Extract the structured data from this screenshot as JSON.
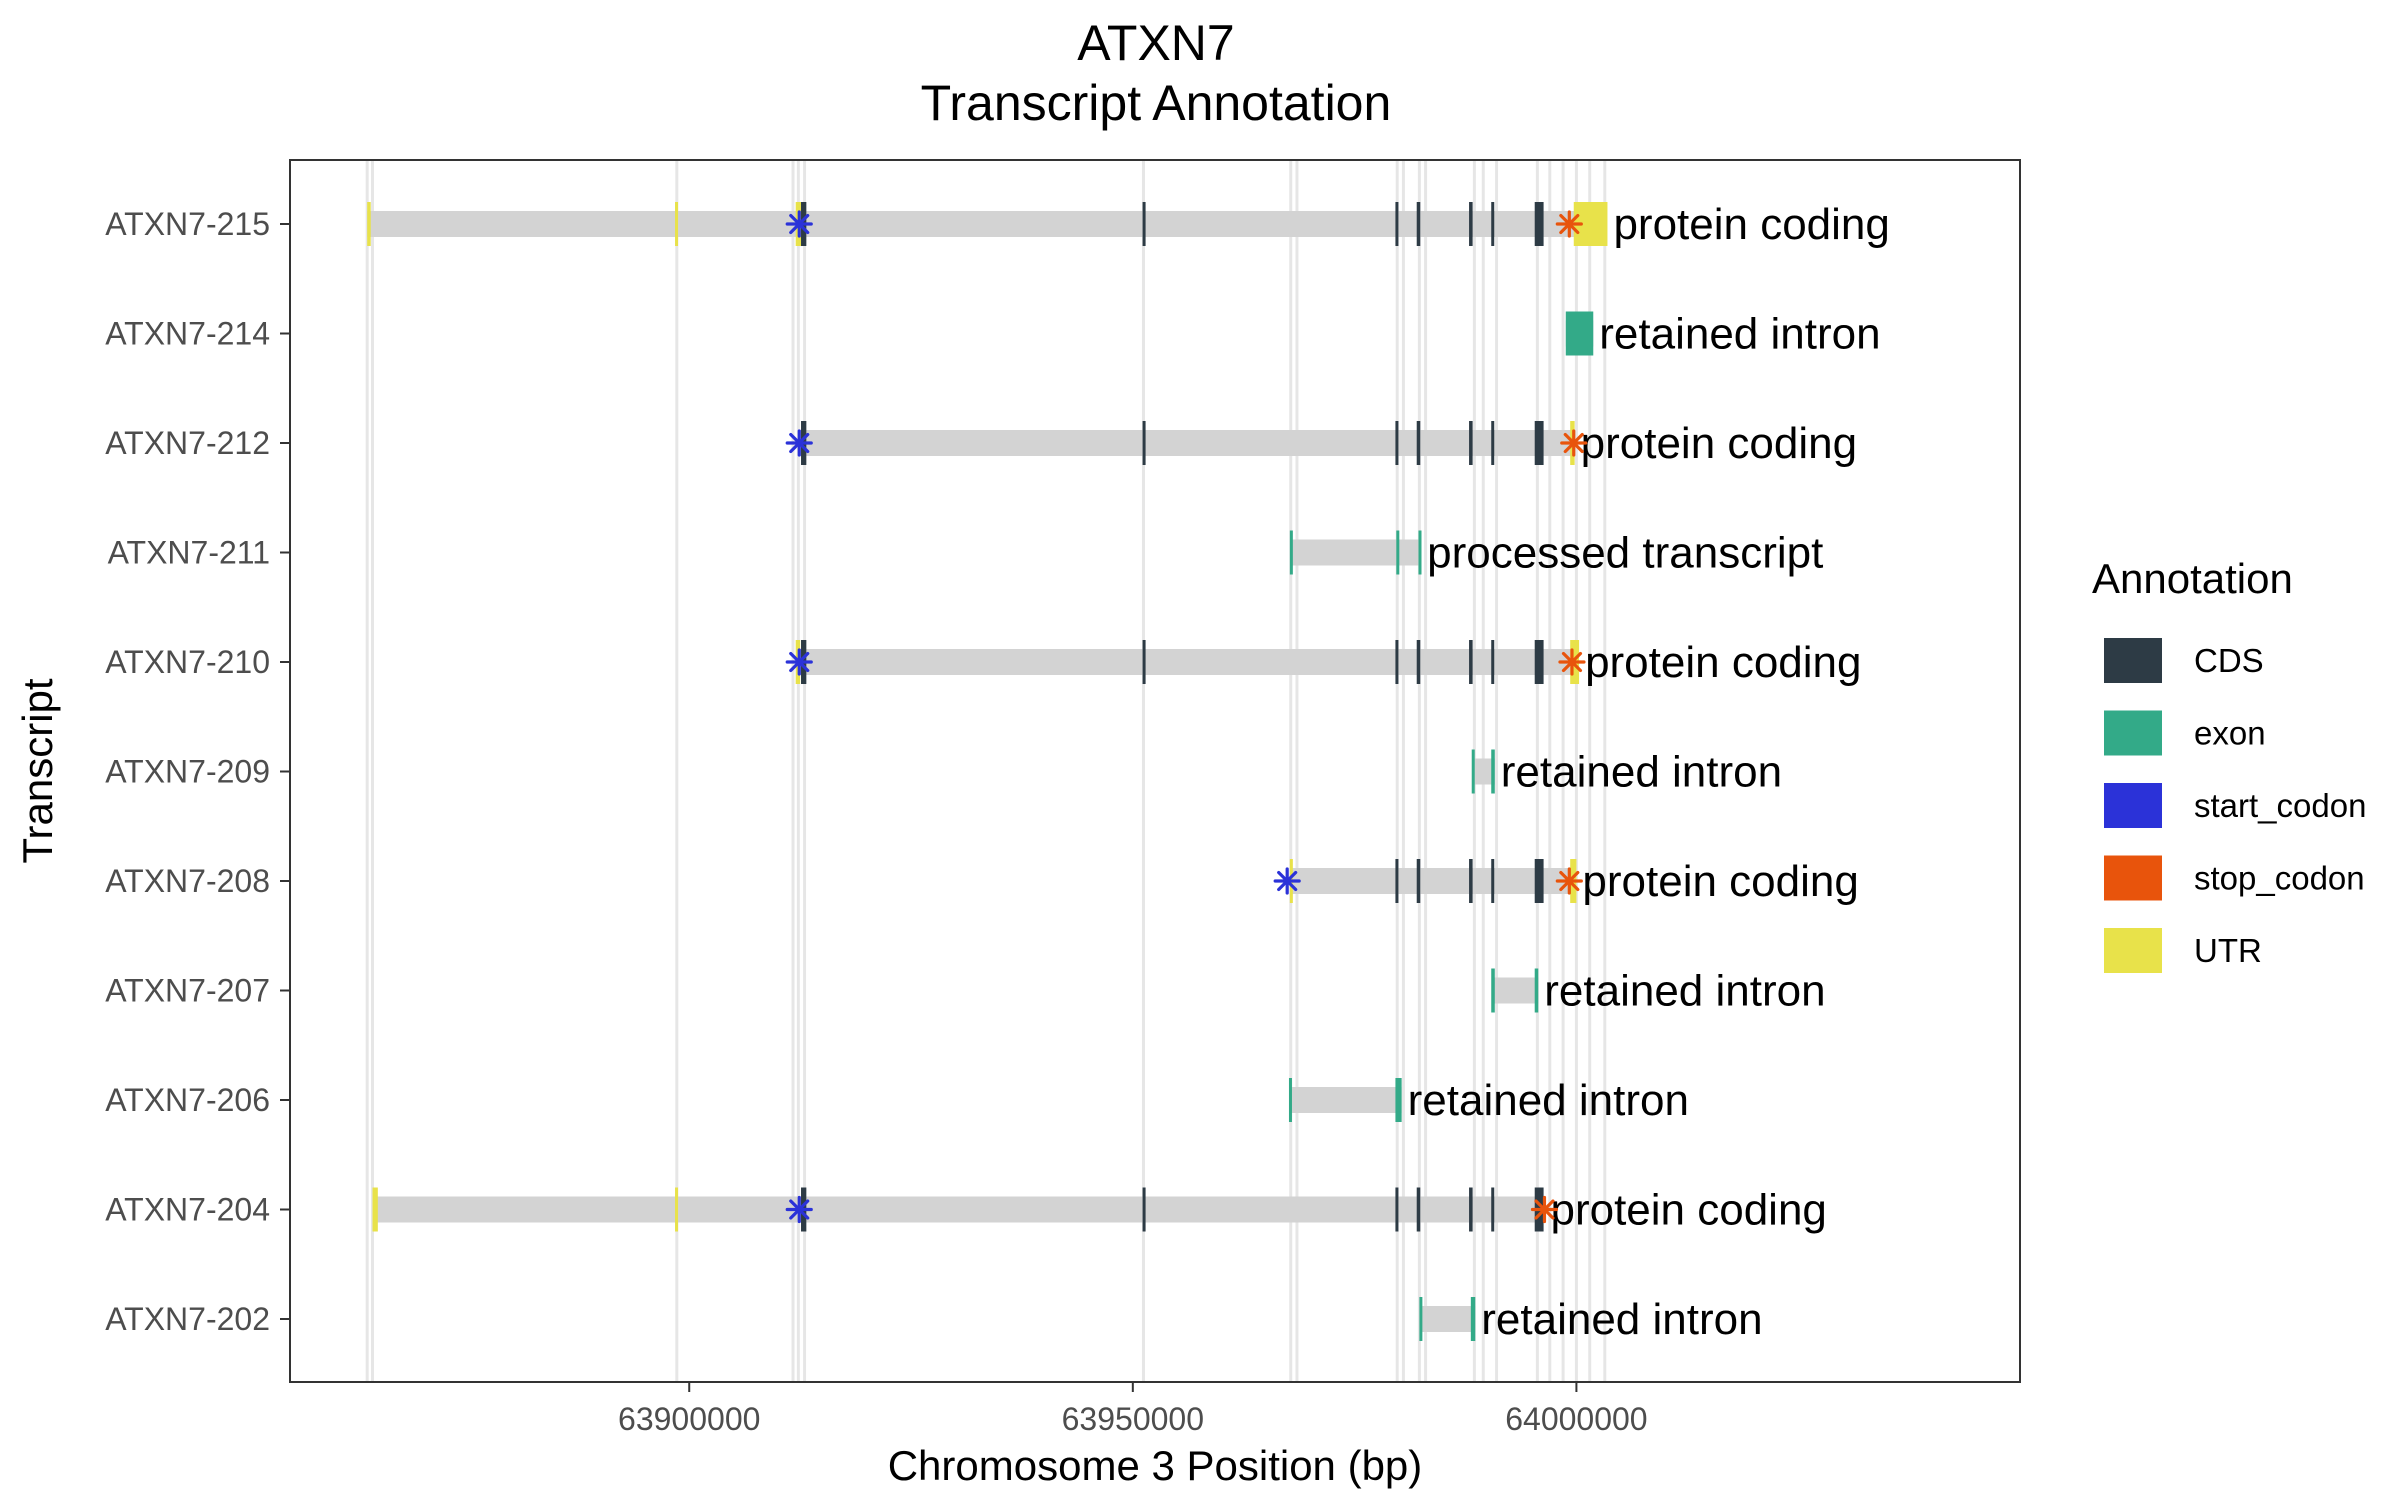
{
  "chart_data": {
    "type": "gene-track",
    "title": "ATXN7",
    "subtitle": "Transcript Annotation",
    "xlabel": "Chromosome 3 Position (bp)",
    "ylabel": "Transcript",
    "xlim": [
      63855000,
      64050000
    ],
    "xticks": [
      63900000,
      63950000,
      64000000
    ],
    "xtick_labels": [
      "63900000",
      "63950000",
      "64000000"
    ],
    "grid": "exon boundary lines",
    "legend": {
      "title": "Annotation",
      "position": "right",
      "entries": [
        {
          "label": "CDS",
          "color": "#2d3b45"
        },
        {
          "label": "exon",
          "color": "#33aa88"
        },
        {
          "label": "start_codon",
          "color": "#2b32d8"
        },
        {
          "label": "stop_codon",
          "color": "#e8540c"
        },
        {
          "label": "UTR",
          "color": "#e8e24a"
        }
      ]
    },
    "intron_color": "#d3d3d3",
    "guide_positions": [
      63863700,
      63864300,
      63898600,
      63911700,
      63912300,
      63913000,
      63951200,
      63967800,
      63968500,
      63979800,
      63980500,
      63982300,
      63983000,
      63988500,
      63989500,
      63991000,
      63995600,
      63997000,
      63998500,
      64000000,
      64001500,
      64003200
    ],
    "transcripts": [
      {
        "name": "ATXN7-215",
        "biotype": "protein coding",
        "start": 63863700,
        "end": 64000000,
        "utr": [
          [
            63863700,
            63864100
          ],
          [
            63898400,
            63898700
          ],
          [
            63912000,
            63912600
          ],
          [
            63999700,
            64003500
          ]
        ],
        "cds": [
          [
            63912600,
            63913200
          ],
          [
            63951100,
            63951300
          ],
          [
            63979600,
            63979900
          ],
          [
            63982000,
            63982400
          ],
          [
            63987900,
            63988300
          ],
          [
            63990400,
            63990700
          ],
          [
            63995300,
            63996300
          ]
        ],
        "exon": [],
        "start_codon": 63912400,
        "stop_codon": 63999200
      },
      {
        "name": "ATXN7-214",
        "biotype": "retained intron",
        "start": 63998800,
        "end": 64001900,
        "utr": [],
        "cds": [],
        "exon": [
          [
            63998800,
            64001900
          ]
        ],
        "start_codon": null,
        "stop_codon": null
      },
      {
        "name": "ATXN7-212",
        "biotype": "protein coding",
        "start": 63912400,
        "end": 63999800,
        "utr": [
          [
            63999300,
            63999800
          ]
        ],
        "cds": [
          [
            63912600,
            63913200
          ],
          [
            63951100,
            63951300
          ],
          [
            63979600,
            63979900
          ],
          [
            63982000,
            63982400
          ],
          [
            63987900,
            63988300
          ],
          [
            63990400,
            63990700
          ],
          [
            63995300,
            63996300
          ]
        ],
        "exon": [],
        "start_codon": 63912400,
        "stop_codon": 63999700
      },
      {
        "name": "ATXN7-211",
        "biotype": "processed transcript",
        "start": 63967800,
        "end": 63982500,
        "utr": [],
        "cds": [],
        "exon": [
          [
            63967700,
            63968000
          ],
          [
            63979700,
            63980000
          ],
          [
            63982200,
            63982500
          ]
        ],
        "start_codon": null,
        "stop_codon": null
      },
      {
        "name": "ATXN7-210",
        "biotype": "protein coding",
        "start": 63912400,
        "end": 64000000,
        "utr": [
          [
            63912000,
            63912500
          ],
          [
            63999300,
            64000300
          ]
        ],
        "cds": [
          [
            63912600,
            63913200
          ],
          [
            63951100,
            63951300
          ],
          [
            63979600,
            63979900
          ],
          [
            63982000,
            63982400
          ],
          [
            63987900,
            63988300
          ],
          [
            63990400,
            63990700
          ],
          [
            63995300,
            63996300
          ]
        ],
        "exon": [],
        "start_codon": 63912400,
        "stop_codon": 63999500
      },
      {
        "name": "ATXN7-209",
        "biotype": "retained intron",
        "start": 63988300,
        "end": 63990800,
        "utr": [],
        "cds": [],
        "exon": [
          [
            63988200,
            63988500
          ],
          [
            63990400,
            63990800
          ]
        ],
        "start_codon": null,
        "stop_codon": null
      },
      {
        "name": "ATXN7-208",
        "biotype": "protein coding",
        "start": 63967800,
        "end": 63999800,
        "utr": [
          [
            63967700,
            63968000
          ],
          [
            63999300,
            64000000
          ]
        ],
        "cds": [
          [
            63979600,
            63979900
          ],
          [
            63982000,
            63982400
          ],
          [
            63987900,
            63988300
          ],
          [
            63990400,
            63990700
          ],
          [
            63995300,
            63996300
          ]
        ],
        "exon": [],
        "start_codon": 63967400,
        "stop_codon": 63999200
      },
      {
        "name": "ATXN7-207",
        "biotype": "retained intron",
        "start": 63990500,
        "end": 63995700,
        "utr": [],
        "cds": [],
        "exon": [
          [
            63990400,
            63990800
          ],
          [
            63995300,
            63995700
          ]
        ],
        "start_codon": null,
        "stop_codon": null
      },
      {
        "name": "ATXN7-206",
        "biotype": "retained intron",
        "start": 63967700,
        "end": 63980300,
        "utr": [],
        "cds": [],
        "exon": [
          [
            63967600,
            63967900
          ],
          [
            63979600,
            63980300
          ]
        ],
        "start_codon": null,
        "stop_codon": null
      },
      {
        "name": "ATXN7-204",
        "biotype": "protein coding",
        "start": 63864400,
        "end": 63996400,
        "utr": [
          [
            63864300,
            63864900
          ],
          [
            63898400,
            63898700
          ]
        ],
        "cds": [
          [
            63912600,
            63913200
          ],
          [
            63951100,
            63951300
          ],
          [
            63979600,
            63979900
          ],
          [
            63982000,
            63982400
          ],
          [
            63987900,
            63988300
          ],
          [
            63990400,
            63990700
          ],
          [
            63995300,
            63996300
          ]
        ],
        "exon": [],
        "start_codon": 63912400,
        "stop_codon": 63996400
      },
      {
        "name": "ATXN7-202",
        "biotype": "retained intron",
        "start": 63982400,
        "end": 63988600,
        "utr": [],
        "cds": [],
        "exon": [
          [
            63982300,
            63982600
          ],
          [
            63988100,
            63988600
          ]
        ],
        "start_codon": null,
        "stop_codon": null
      }
    ]
  }
}
